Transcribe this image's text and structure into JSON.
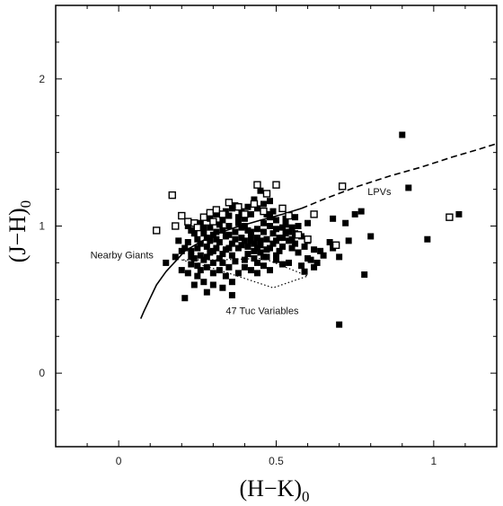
{
  "chart_data": {
    "type": "scatter",
    "title": "",
    "xlabel": {
      "main": "(H−K)",
      "sub": "0"
    },
    "ylabel": {
      "main": "(J−H)",
      "sub": "0"
    },
    "xlim": [
      -0.2,
      1.2
    ],
    "ylim": [
      -0.5,
      2.5
    ],
    "xticks": [
      0,
      0.5,
      1
    ],
    "xtick_labels": [
      "0",
      "0.5",
      "1"
    ],
    "yticks": [
      0,
      1,
      2
    ],
    "ytick_labels": [
      "0",
      "1",
      "2"
    ],
    "grid": false,
    "legend": "none",
    "series": [
      {
        "marker": "filled-square",
        "points": [
          [
            0.9,
            1.62
          ],
          [
            0.92,
            1.26
          ],
          [
            1.08,
            1.08
          ],
          [
            0.98,
            0.91
          ],
          [
            0.7,
            0.33
          ],
          [
            0.78,
            0.67
          ],
          [
            0.75,
            1.08
          ],
          [
            0.77,
            1.1
          ],
          [
            0.72,
            1.02
          ],
          [
            0.68,
            1.05
          ],
          [
            0.67,
            0.89
          ],
          [
            0.64,
            0.83
          ],
          [
            0.6,
            0.78
          ],
          [
            0.59,
            0.86
          ],
          [
            0.57,
            0.82
          ],
          [
            0.55,
            0.85
          ],
          [
            0.55,
            0.91
          ],
          [
            0.53,
            1.01
          ],
          [
            0.56,
            1.06
          ],
          [
            0.6,
            1.02
          ],
          [
            0.62,
            0.72
          ],
          [
            0.61,
            0.77
          ],
          [
            0.58,
            0.73
          ],
          [
            0.54,
            0.75
          ],
          [
            0.52,
            0.74
          ],
          [
            0.5,
            0.77
          ],
          [
            0.48,
            0.7
          ],
          [
            0.44,
            0.75
          ],
          [
            0.4,
            0.77
          ],
          [
            0.35,
            0.72
          ],
          [
            0.3,
            0.68
          ],
          [
            0.27,
            0.62
          ],
          [
            0.24,
            0.6
          ],
          [
            0.21,
            0.51
          ],
          [
            0.25,
            0.66
          ],
          [
            0.28,
            0.72
          ],
          [
            0.23,
            0.74
          ],
          [
            0.2,
            0.7
          ],
          [
            0.18,
            0.79
          ],
          [
            0.15,
            0.75
          ],
          [
            0.2,
            0.83
          ],
          [
            0.22,
            0.89
          ],
          [
            0.25,
            0.91
          ],
          [
            0.23,
            0.97
          ],
          [
            0.26,
            1.02
          ],
          [
            0.29,
            0.99
          ],
          [
            0.3,
            0.94
          ],
          [
            0.32,
            0.89
          ],
          [
            0.34,
            0.84
          ],
          [
            0.36,
            0.8
          ],
          [
            0.38,
            0.85
          ],
          [
            0.4,
            0.9
          ],
          [
            0.42,
            0.94
          ],
          [
            0.44,
            0.98
          ],
          [
            0.46,
            1.02
          ],
          [
            0.48,
            1.06
          ],
          [
            0.5,
            1.04
          ],
          [
            0.52,
            0.99
          ],
          [
            0.49,
            0.95
          ],
          [
            0.47,
            0.91
          ],
          [
            0.45,
            0.87
          ],
          [
            0.43,
            0.83
          ],
          [
            0.41,
            0.81
          ],
          [
            0.39,
            0.92
          ],
          [
            0.37,
            0.96
          ],
          [
            0.35,
            1.0
          ],
          [
            0.33,
            1.04
          ],
          [
            0.31,
            1.08
          ],
          [
            0.29,
            1.05
          ],
          [
            0.27,
            0.95
          ],
          [
            0.28,
            0.86
          ],
          [
            0.26,
            0.8
          ],
          [
            0.32,
            0.78
          ],
          [
            0.34,
            0.93
          ],
          [
            0.36,
            0.88
          ],
          [
            0.38,
            1.02
          ],
          [
            0.4,
            1.05
          ],
          [
            0.42,
            1.08
          ],
          [
            0.44,
            1.12
          ],
          [
            0.46,
            1.15
          ],
          [
            0.48,
            1.17
          ],
          [
            0.45,
            1.24
          ],
          [
            0.43,
            1.18
          ],
          [
            0.41,
            1.13
          ],
          [
            0.39,
            1.1
          ],
          [
            0.37,
            1.14
          ],
          [
            0.35,
            1.07
          ],
          [
            0.33,
            0.97
          ],
          [
            0.31,
            0.91
          ],
          [
            0.29,
            0.82
          ],
          [
            0.27,
            0.77
          ],
          [
            0.25,
            0.73
          ],
          [
            0.23,
            0.79
          ],
          [
            0.21,
            0.85
          ],
          [
            0.19,
            0.9
          ],
          [
            0.22,
            1.0
          ],
          [
            0.24,
            0.95
          ],
          [
            0.26,
            0.88
          ],
          [
            0.3,
            0.75
          ],
          [
            0.32,
            0.7
          ],
          [
            0.34,
            0.66
          ],
          [
            0.36,
            0.62
          ],
          [
            0.38,
            0.68
          ],
          [
            0.4,
            0.72
          ],
          [
            0.42,
            0.7
          ],
          [
            0.44,
            0.68
          ],
          [
            0.46,
            0.73
          ],
          [
            0.5,
            0.8
          ],
          [
            0.52,
            0.86
          ],
          [
            0.54,
            0.9
          ],
          [
            0.56,
            0.95
          ],
          [
            0.51,
            0.92
          ],
          [
            0.49,
            0.88
          ],
          [
            0.47,
            0.84
          ],
          [
            0.45,
            0.82
          ],
          [
            0.43,
            0.88
          ],
          [
            0.41,
            0.97
          ],
          [
            0.39,
            0.99
          ],
          [
            0.37,
            0.91
          ],
          [
            0.35,
            0.85
          ],
          [
            0.33,
            0.81
          ],
          [
            0.31,
            0.85
          ],
          [
            0.29,
            0.9
          ],
          [
            0.27,
            0.99
          ],
          [
            0.25,
            0.85
          ],
          [
            0.23,
            0.83
          ],
          [
            0.28,
            0.92
          ],
          [
            0.32,
            1.01
          ],
          [
            0.34,
            1.1
          ],
          [
            0.36,
            1.12
          ],
          [
            0.38,
            1.06
          ],
          [
            0.4,
            1.0
          ],
          [
            0.42,
            0.96
          ],
          [
            0.44,
            0.92
          ],
          [
            0.46,
            0.96
          ],
          [
            0.48,
            1.0
          ],
          [
            0.5,
            0.98
          ],
          [
            0.53,
            0.95
          ],
          [
            0.55,
            0.99
          ],
          [
            0.57,
            1.0
          ],
          [
            0.58,
            0.93
          ],
          [
            0.6,
            0.9
          ],
          [
            0.62,
            0.84
          ],
          [
            0.65,
            0.8
          ],
          [
            0.7,
            0.79
          ],
          [
            0.73,
            0.9
          ],
          [
            0.8,
            0.93
          ],
          [
            0.68,
            0.85
          ],
          [
            0.63,
            0.75
          ],
          [
            0.59,
            0.69
          ],
          [
            0.3,
            0.6
          ],
          [
            0.33,
            0.58
          ],
          [
            0.28,
            0.55
          ],
          [
            0.36,
            0.53
          ],
          [
            0.43,
            0.78
          ],
          [
            0.47,
            0.79
          ],
          [
            0.51,
            0.83
          ],
          [
            0.53,
            1.05
          ],
          [
            0.49,
            1.1
          ],
          [
            0.47,
            1.08
          ],
          [
            0.26,
            0.7
          ],
          [
            0.24,
            0.78
          ],
          [
            0.22,
            0.68
          ],
          [
            0.31,
            0.96
          ],
          [
            0.35,
            0.94
          ],
          [
            0.39,
            0.87
          ],
          [
            0.41,
            0.86
          ],
          [
            0.45,
            0.9
          ],
          [
            0.37,
            0.76
          ],
          [
            0.33,
            0.75
          ],
          [
            0.3,
            0.83
          ],
          [
            0.28,
            0.79
          ],
          [
            0.5,
            0.9
          ],
          [
            0.52,
            0.92
          ],
          [
            0.54,
            0.96
          ],
          [
            0.56,
            0.88
          ],
          [
            0.48,
            0.85
          ],
          [
            0.46,
            0.79
          ],
          [
            0.44,
            0.85
          ],
          [
            0.42,
            0.9
          ]
        ]
      },
      {
        "marker": "open-square",
        "points": [
          [
            0.17,
            1.21
          ],
          [
            0.12,
            0.97
          ],
          [
            0.18,
            1.0
          ],
          [
            0.2,
            1.07
          ],
          [
            0.22,
            1.03
          ],
          [
            0.24,
            1.02
          ],
          [
            0.27,
            1.06
          ],
          [
            0.29,
            1.09
          ],
          [
            0.31,
            1.11
          ],
          [
            0.33,
            1.08
          ],
          [
            0.35,
            1.16
          ],
          [
            0.38,
            1.13
          ],
          [
            0.4,
            1.08
          ],
          [
            0.43,
            1.15
          ],
          [
            0.44,
            1.28
          ],
          [
            0.5,
            1.28
          ],
          [
            0.54,
            1.07
          ],
          [
            0.62,
            1.08
          ],
          [
            0.69,
            0.87
          ],
          [
            0.71,
            1.27
          ],
          [
            1.05,
            1.06
          ],
          [
            0.25,
            0.99
          ],
          [
            0.3,
            1.03
          ],
          [
            0.46,
            1.1
          ],
          [
            0.52,
            1.12
          ],
          [
            0.47,
            1.22
          ],
          [
            0.57,
            0.94
          ],
          [
            0.6,
            0.91
          ]
        ]
      }
    ],
    "lines": [
      {
        "name": "Nearby Giants",
        "style": "solid",
        "points": [
          [
            0.07,
            0.37
          ],
          [
            0.08,
            0.42
          ],
          [
            0.1,
            0.51
          ],
          [
            0.12,
            0.6
          ],
          [
            0.15,
            0.69
          ],
          [
            0.18,
            0.76
          ],
          [
            0.21,
            0.83
          ],
          [
            0.25,
            0.88
          ],
          [
            0.3,
            0.94
          ],
          [
            0.37,
            0.99
          ],
          [
            0.45,
            1.04
          ],
          [
            0.52,
            1.08
          ],
          [
            0.58,
            1.12
          ]
        ]
      },
      {
        "name": "LPVs",
        "style": "dashed",
        "points": [
          [
            0.58,
            1.12
          ],
          [
            0.66,
            1.19
          ],
          [
            0.76,
            1.27
          ],
          [
            0.86,
            1.34
          ],
          [
            0.96,
            1.4
          ],
          [
            1.06,
            1.47
          ],
          [
            1.14,
            1.52
          ],
          [
            1.2,
            1.56
          ]
        ]
      }
    ],
    "regions": [
      {
        "name": "47 Tuc Variables",
        "style": "dotted",
        "points": [
          [
            0.2,
            0.77
          ],
          [
            0.32,
            0.7
          ],
          [
            0.49,
            0.58
          ],
          [
            0.6,
            0.66
          ],
          [
            0.46,
            0.78
          ],
          [
            0.32,
            0.77
          ]
        ]
      }
    ],
    "annotations": [
      {
        "text": "LPVs",
        "x": 0.79,
        "y": 1.21
      },
      {
        "text": "Nearby Giants",
        "x": -0.09,
        "y": 0.78
      },
      {
        "text": "47 Tuc Variables",
        "x": 0.34,
        "y": 0.4
      }
    ]
  }
}
